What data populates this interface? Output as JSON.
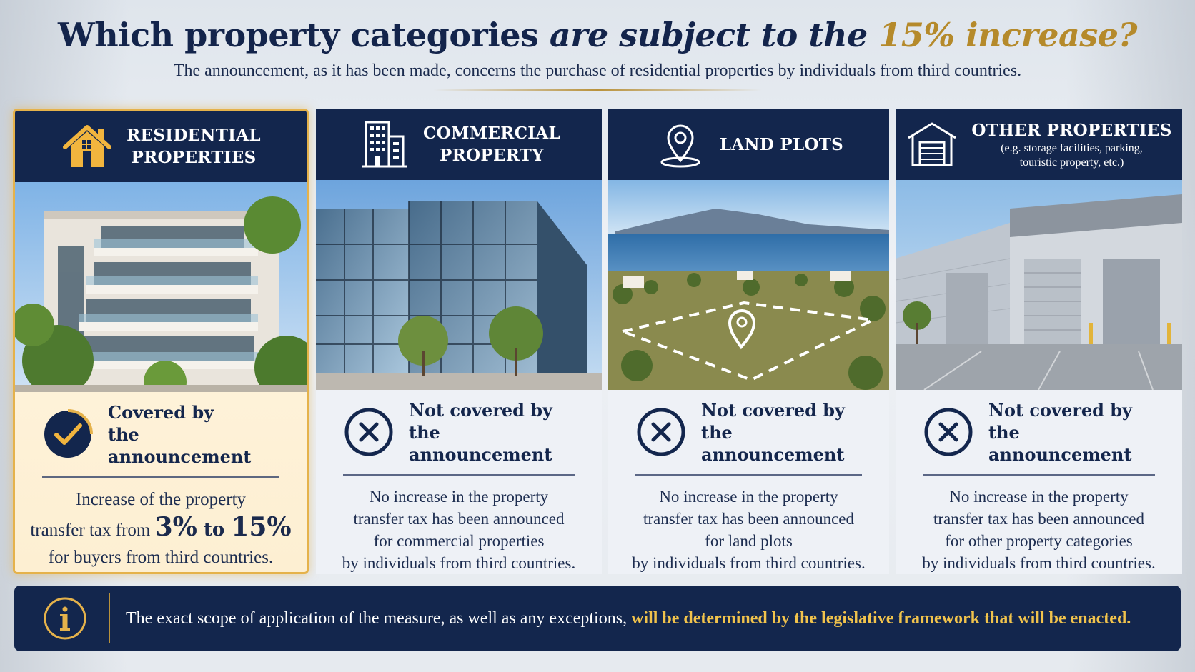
{
  "header": {
    "title_part1": "Which property categories ",
    "title_part2": "are subject to the ",
    "title_part3": "15% increase?",
    "subtitle": "The announcement, as it has been made, concerns the purchase of residential properties by individuals from third countries."
  },
  "cards": [
    {
      "title_line1": "RESIDENTIAL",
      "title_line2": "PROPERTIES",
      "icon": "house-icon",
      "status_line1": "Covered by",
      "status_line2": "the announcement",
      "desc_line1": "Increase of the property",
      "desc_line2_a": "transfer tax from ",
      "desc_from": "3%",
      "desc_to": " to ",
      "desc_rate": "15%",
      "desc_line3": "for buyers from third countries."
    },
    {
      "title_line1": "COMMERCIAL",
      "title_line2": "PROPERTY",
      "icon": "building-icon",
      "status_line1": "Not covered by",
      "status_line2": "the announcement",
      "desc_lines": [
        "No increase in the property",
        "transfer tax has been announced",
        "for commercial properties",
        "by individuals from third countries."
      ]
    },
    {
      "title_line1": "LAND PLOTS",
      "icon": "location-pin-icon",
      "status_line1": "Not covered by",
      "status_line2": "the announcement",
      "desc_lines": [
        "No increase in the property",
        "transfer tax has been announced",
        "for land plots",
        "by individuals from third countries."
      ]
    },
    {
      "title_line1": "OTHER PROPERTIES",
      "title_sub_line1": "(e.g. storage facilities, parking,",
      "title_sub_line2": "touristic property, etc.)",
      "icon": "warehouse-icon",
      "status_line1": "Not covered by",
      "status_line2": "the announcement",
      "desc_lines": [
        "No increase in the property",
        "transfer tax has been announced",
        "for other property categories",
        "by individuals from third countries."
      ]
    }
  ],
  "footer": {
    "icon": "info-icon",
    "text_plain": "The exact scope of application of the measure, as well as any exceptions, ",
    "text_highlight": "will be determined by the legislative framework that will be enacted."
  },
  "colors": {
    "navy": "#13264d",
    "gold": "#b58a2b",
    "highlight_gold": "#f1c34c",
    "card_highlight_border": "#e5b24b"
  }
}
